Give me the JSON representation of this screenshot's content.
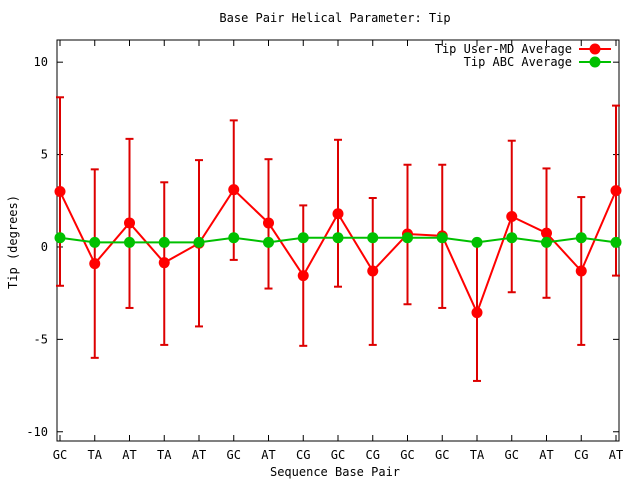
{
  "chart_data": {
    "type": "line",
    "title": "Base Pair Helical Parameter: Tip",
    "xlabel": "Sequence Base Pair",
    "ylabel": "Tip (degrees)",
    "categories": [
      "GC",
      "TA",
      "AT",
      "TA",
      "AT",
      "GC",
      "AT",
      "CG",
      "GC",
      "CG",
      "GC",
      "GC",
      "TA",
      "GC",
      "AT",
      "CG",
      "AT"
    ],
    "ylim": [
      -10.5,
      11.2
    ],
    "yticks": [
      -10,
      -5,
      0,
      5,
      10
    ],
    "yticks_labels": [
      "-10",
      "-5",
      "0",
      "5",
      "10"
    ],
    "grid": false,
    "legend_position": "top-right",
    "series": [
      {
        "name": "Tip User-MD Average",
        "color": "#ff0000",
        "errorbar_color": "#dd0000",
        "values": [
          3.0,
          -0.9,
          1.3,
          -0.85,
          0.2,
          3.1,
          1.3,
          -1.55,
          1.8,
          -1.3,
          0.7,
          0.6,
          -3.55,
          1.65,
          0.75,
          -1.3,
          3.05
        ],
        "error_low": [
          -2.1,
          -6.0,
          -3.3,
          -5.3,
          -4.3,
          -0.7,
          -2.25,
          -5.35,
          -2.15,
          -5.3,
          -3.1,
          -3.3,
          -7.25,
          -2.45,
          -2.75,
          -5.3,
          -1.55
        ],
        "error_high": [
          8.1,
          4.2,
          5.85,
          3.5,
          4.7,
          6.85,
          4.75,
          2.25,
          5.8,
          2.65,
          4.45,
          4.45,
          0.3,
          5.75,
          4.25,
          2.7,
          7.65
        ]
      },
      {
        "name": "Tip ABC Average",
        "color": "#00c000",
        "values": [
          0.5,
          0.25,
          0.25,
          0.25,
          0.25,
          0.5,
          0.25,
          0.5,
          0.5,
          0.5,
          0.5,
          0.5,
          0.25,
          0.5,
          0.25,
          0.5,
          0.25
        ]
      }
    ]
  }
}
